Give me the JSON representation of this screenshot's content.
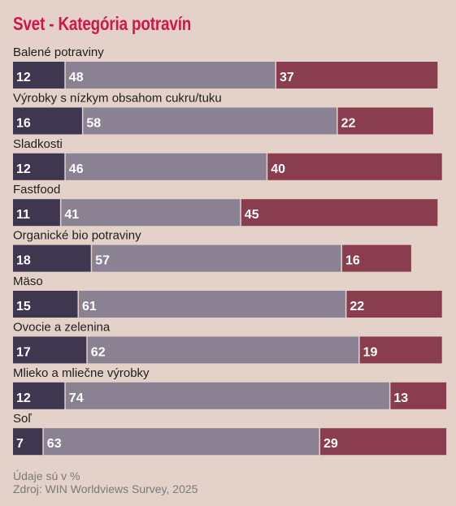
{
  "title": "Svet - Kategória potravín",
  "footer": {
    "note": "Údaje sú v %",
    "source": "Zdroj: WIN Worldviews Survey, 2025"
  },
  "colors": {
    "background": "#e4d1c9",
    "title": "#d0164a",
    "series": [
      "#3f3650",
      "#8a8293",
      "#8a3d4e"
    ]
  },
  "chart_data": {
    "type": "bar",
    "orientation": "horizontal",
    "stacked": true,
    "title": "Svet - Kategória potravín",
    "categories": [
      "Balené potraviny",
      "Výrobky s nízkym obsahom cukru/tuku",
      "Sladkosti",
      "Fastfood",
      "Organické bio potraviny",
      "Mäso",
      "Ovocie a zelenina",
      "Mlieko a mliečne výrobky",
      "Soľ"
    ],
    "series": [
      {
        "values": [
          12,
          16,
          12,
          11,
          18,
          15,
          17,
          12,
          7
        ]
      },
      {
        "values": [
          48,
          58,
          46,
          41,
          57,
          61,
          62,
          74,
          63
        ]
      },
      {
        "values": [
          37,
          22,
          40,
          45,
          16,
          22,
          19,
          13,
          29
        ]
      }
    ],
    "xlim": [
      0,
      100
    ],
    "grid": false,
    "legend": "none"
  }
}
